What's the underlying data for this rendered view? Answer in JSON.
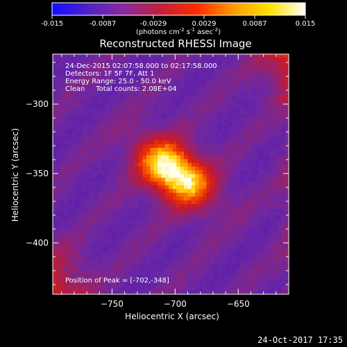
{
  "colorbar": {
    "ticks": [
      "-0.015",
      "-0.0087",
      "-0.0029",
      "0.0029",
      "0.0087",
      "0.015"
    ],
    "units_parts": [
      "(photons cm",
      "-2",
      " s",
      "-1",
      " asec",
      "-2",
      ")"
    ],
    "gradient_stops": [
      "#1010ff",
      "#5020c8",
      "#8a2a9a",
      "#c0203a",
      "#ff2a00",
      "#ff9900",
      "#ffe000",
      "#ffffff"
    ]
  },
  "chart_data": {
    "type": "heatmap",
    "title": "Reconstructed RHESSI Image",
    "xlabel": "Heliocentric X (arcsec)",
    "ylabel": "Heliocentric Y (arcsec)",
    "x_ticks": [
      -750,
      -700,
      -650
    ],
    "y_ticks": [
      -300,
      -350,
      -400
    ],
    "xlim": [
      -797,
      -610
    ],
    "ylim": [
      -437,
      -264
    ],
    "value_range": [
      -0.015,
      0.015
    ],
    "peak": {
      "x": -702,
      "y": -348
    },
    "annotations": {
      "time_range": "24-Dec-2015 02:07:58.000 to 02:17:58.000",
      "detectors": "Detectors: 1F 5F 7F, Att 1",
      "energy_range": "Energy Range: 25.0 - 50.0 keV",
      "clean_totals": "Clean     Total counts: 2.08E+04",
      "peak_text": "Position of Peak = [-702,-348]"
    }
  },
  "footer": {
    "timestamp": "24-Oct-2017 17:35"
  }
}
